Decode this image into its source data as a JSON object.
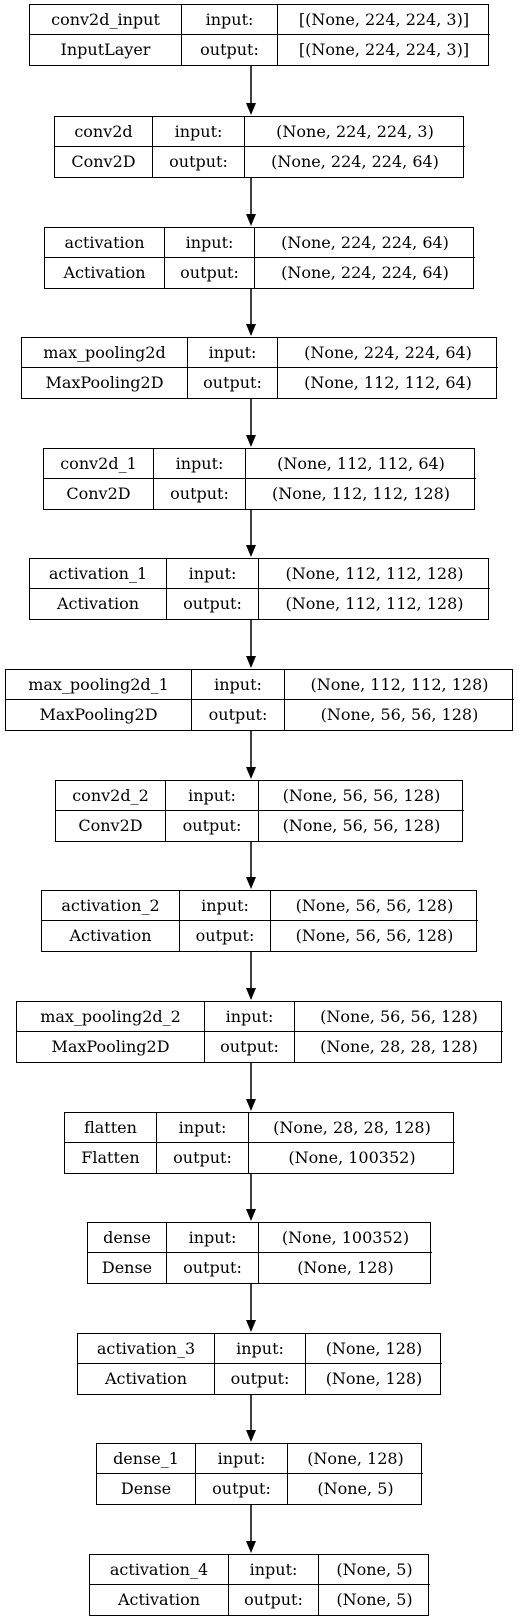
{
  "layers": [
    {
      "name": "conv2d_input",
      "type": "InputLayer",
      "input_label": "input:",
      "output_label": "output:",
      "input_shape": "[(None, 224, 224, 3)]",
      "output_shape": "[(None, 224, 224, 3)]"
    },
    {
      "name": "conv2d",
      "type": "Conv2D",
      "input_label": "input:",
      "output_label": "output:",
      "input_shape": "(None, 224, 224, 3)",
      "output_shape": "(None, 224, 224, 64)"
    },
    {
      "name": "activation",
      "type": "Activation",
      "input_label": "input:",
      "output_label": "output:",
      "input_shape": "(None, 224, 224, 64)",
      "output_shape": "(None, 224, 224, 64)"
    },
    {
      "name": "max_pooling2d",
      "type": "MaxPooling2D",
      "input_label": "input:",
      "output_label": "output:",
      "input_shape": "(None, 224, 224, 64)",
      "output_shape": "(None, 112, 112, 64)"
    },
    {
      "name": "conv2d_1",
      "type": "Conv2D",
      "input_label": "input:",
      "output_label": "output:",
      "input_shape": "(None, 112, 112, 64)",
      "output_shape": "(None, 112, 112, 128)"
    },
    {
      "name": "activation_1",
      "type": "Activation",
      "input_label": "input:",
      "output_label": "output:",
      "input_shape": "(None, 112, 112, 128)",
      "output_shape": "(None, 112, 112, 128)"
    },
    {
      "name": "max_pooling2d_1",
      "type": "MaxPooling2D",
      "input_label": "input:",
      "output_label": "output:",
      "input_shape": "(None, 112, 112, 128)",
      "output_shape": "(None, 56, 56, 128)"
    },
    {
      "name": "conv2d_2",
      "type": "Conv2D",
      "input_label": "input:",
      "output_label": "output:",
      "input_shape": "(None, 56, 56, 128)",
      "output_shape": "(None, 56, 56, 128)"
    },
    {
      "name": "activation_2",
      "type": "Activation",
      "input_label": "input:",
      "output_label": "output:",
      "input_shape": "(None, 56, 56, 128)",
      "output_shape": "(None, 56, 56, 128)"
    },
    {
      "name": "max_pooling2d_2",
      "type": "MaxPooling2D",
      "input_label": "input:",
      "output_label": "output:",
      "input_shape": "(None, 56, 56, 128)",
      "output_shape": "(None, 28, 28, 128)"
    },
    {
      "name": "flatten",
      "type": "Flatten",
      "input_label": "input:",
      "output_label": "output:",
      "input_shape": "(None, 28, 28, 128)",
      "output_shape": "(None, 100352)"
    },
    {
      "name": "dense",
      "type": "Dense",
      "input_label": "input:",
      "output_label": "output:",
      "input_shape": "(None, 100352)",
      "output_shape": "(None, 128)"
    },
    {
      "name": "activation_3",
      "type": "Activation",
      "input_label": "input:",
      "output_label": "output:",
      "input_shape": "(None, 128)",
      "output_shape": "(None, 128)"
    },
    {
      "name": "dense_1",
      "type": "Dense",
      "input_label": "input:",
      "output_label": "output:",
      "input_shape": "(None, 128)",
      "output_shape": "(None, 5)"
    },
    {
      "name": "activation_4",
      "type": "Activation",
      "input_label": "input:",
      "output_label": "output:",
      "input_shape": "(None, 5)",
      "output_shape": "(None, 5)"
    }
  ]
}
